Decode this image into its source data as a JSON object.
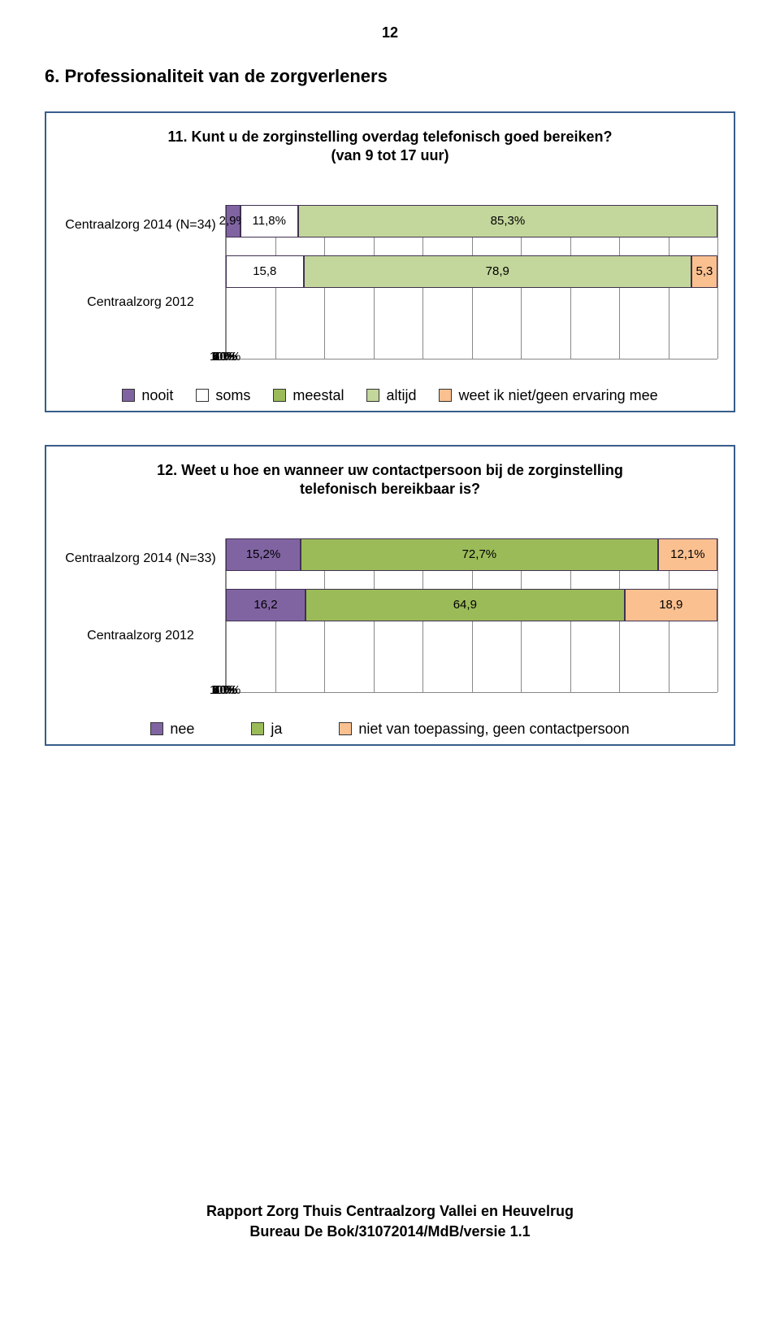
{
  "page_number": "12",
  "section_title": "6. Professionaliteit van de zorgverleners",
  "footer_line1": "Rapport Zorg Thuis Centraalzorg Vallei en Heuvelrug",
  "footer_line2": "Bureau De Bok/31072014/MdB/versie 1.1",
  "colors": {
    "nooit": "#8064a2",
    "soms": "#ffffff",
    "meestal": "#9bbb59",
    "altijd": "#c3d69b",
    "weet": "#fac090",
    "nee": "#8064a2",
    "ja": "#9bbb59",
    "nvt": "#fac090",
    "border": "#403151",
    "frame": "#385d8a",
    "grid": "#888888"
  },
  "chart1": {
    "title_l1": "11. Kunt u de zorginstelling overdag telefonisch goed bereiken?",
    "title_l2": "(van 9 tot 17 uur)",
    "row1_label": "Centraalzorg 2014 (N=34)",
    "row2_label": "Centraalzorg 2012",
    "row1": [
      {
        "v": 2.9,
        "label": "2,9%",
        "color": "nooit"
      },
      {
        "v": 11.8,
        "label": "11,8%",
        "color": "soms"
      },
      {
        "v": 85.3,
        "label": "85,3%",
        "color": "altijd"
      }
    ],
    "row2": [
      {
        "v": 15.8,
        "label": "15,8",
        "color": "soms"
      },
      {
        "v": 78.9,
        "label": "78,9",
        "color": "altijd"
      },
      {
        "v": 5.3,
        "label": "5,3",
        "color": "weet"
      }
    ],
    "ticks": [
      "0%",
      "10%",
      "20%",
      "30%",
      "40%",
      "50%",
      "60%",
      "70%",
      "80%",
      "90%",
      "100%"
    ],
    "legend": [
      {
        "label": "nooit",
        "color": "nooit"
      },
      {
        "label": "soms",
        "color": "soms"
      },
      {
        "label": "meestal",
        "color": "meestal"
      },
      {
        "label": "altijd",
        "color": "altijd"
      },
      {
        "label": "weet ik niet/geen ervaring mee",
        "color": "weet"
      }
    ]
  },
  "chart2": {
    "title_l1": "12. Weet u hoe en wanneer uw contactpersoon bij de zorginstelling",
    "title_l2": "telefonisch bereikbaar is?",
    "row1_label": "Centraalzorg 2014 (N=33)",
    "row2_label": "Centraalzorg 2012",
    "row1": [
      {
        "v": 15.2,
        "label": "15,2%",
        "color": "nee"
      },
      {
        "v": 72.7,
        "label": "72,7%",
        "color": "ja"
      },
      {
        "v": 12.1,
        "label": "12,1%",
        "color": "nvt"
      }
    ],
    "row2": [
      {
        "v": 16.2,
        "label": "16,2",
        "color": "nee"
      },
      {
        "v": 64.9,
        "label": "64,9",
        "color": "ja"
      },
      {
        "v": 18.9,
        "label": "18,9",
        "color": "nvt"
      }
    ],
    "ticks": [
      "0%",
      "10%",
      "20%",
      "30%",
      "40%",
      "50%",
      "60%",
      "70%",
      "80%",
      "90%",
      "100%"
    ],
    "legend": [
      {
        "label": "nee",
        "color": "nee"
      },
      {
        "label": "ja",
        "color": "ja"
      },
      {
        "label": "niet van toepassing, geen contactpersoon",
        "color": "nvt"
      }
    ]
  }
}
